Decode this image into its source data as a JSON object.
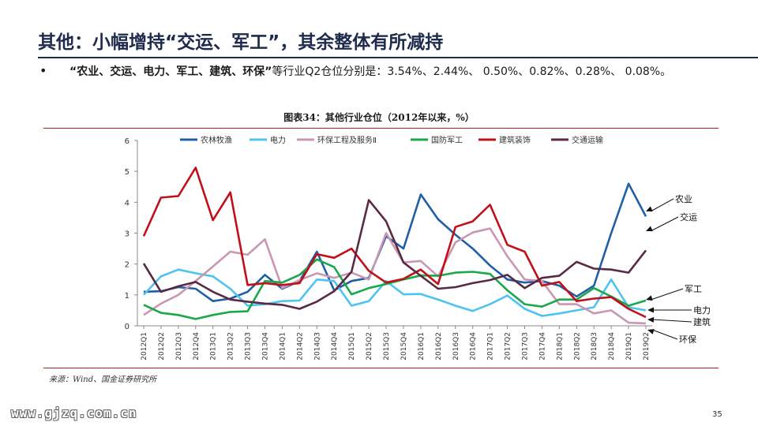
{
  "title": "其他：小幅增持“交运、军工”，其余整体有所减持",
  "bullet": {
    "bold": "“农业、交运、电力、军工、建筑、环保”",
    "rest": "等行业Q2仓位分别是：3.54%、2.44%、 0.50%、0.82%、0.28%、 0.08%。"
  },
  "figure_title": "图表34：其他行业仓位（2012年以来，%）",
  "source": "来源：Wind、国金证券研究所",
  "footer_url": "www.gjzq.com.cn",
  "page_number": "35",
  "chart_data": {
    "type": "line",
    "title": "",
    "xlabel": "",
    "ylabel": "",
    "ylim": [
      0,
      6
    ],
    "yticks": [
      0,
      1,
      2,
      3,
      4,
      5,
      6
    ],
    "grid": false,
    "legend_position": "top",
    "categories": [
      "2012Q1",
      "2012Q2",
      "2012Q3",
      "2012Q4",
      "2013Q1",
      "2013Q2",
      "2013Q3",
      "2013Q4",
      "2014Q1",
      "2014Q2",
      "2014Q3",
      "2014Q4",
      "2015Q1",
      "2015Q2",
      "2015Q3",
      "2015Q4",
      "2016Q1",
      "2016Q2",
      "2016Q3",
      "2016Q4",
      "2017Q1",
      "2017Q2",
      "2017Q3",
      "2017Q4",
      "2018Q1",
      "2018Q2",
      "2018Q3",
      "2018Q4",
      "2019Q1",
      "2019Q2"
    ],
    "series": [
      {
        "name": "农林牧渔",
        "color": "#1f5fa8",
        "values": [
          1.1,
          1.12,
          1.25,
          1.2,
          0.8,
          0.88,
          1.1,
          1.65,
          1.2,
          1.45,
          2.4,
          1.15,
          1.45,
          1.55,
          2.9,
          2.5,
          4.25,
          3.45,
          2.95,
          2.5,
          1.95,
          1.5,
          1.4,
          1.45,
          1.3,
          0.95,
          1.3,
          3.0,
          4.6,
          3.54
        ]
      },
      {
        "name": "电力",
        "color": "#4dc4f0",
        "values": [
          1.0,
          1.6,
          1.82,
          1.7,
          1.6,
          1.2,
          0.65,
          0.7,
          0.8,
          0.82,
          1.5,
          1.45,
          0.65,
          0.8,
          1.45,
          1.02,
          1.03,
          0.85,
          0.65,
          0.48,
          0.7,
          0.98,
          0.55,
          0.32,
          0.4,
          0.5,
          0.6,
          1.5,
          0.6,
          0.5
        ]
      },
      {
        "name": "环保工程及服务Ⅱ",
        "color": "#c997b1",
        "values": [
          0.35,
          0.72,
          1.0,
          1.45,
          1.92,
          2.4,
          2.3,
          2.8,
          1.22,
          1.48,
          1.7,
          1.55,
          1.72,
          1.5,
          3.0,
          2.05,
          2.1,
          1.6,
          2.7,
          3.02,
          3.15,
          2.25,
          1.5,
          1.45,
          0.7,
          0.7,
          0.4,
          0.5,
          0.1,
          0.08
        ]
      },
      {
        "name": "国防军工",
        "color": "#1aa84a",
        "values": [
          0.68,
          0.42,
          0.35,
          0.22,
          0.35,
          0.45,
          0.47,
          1.45,
          1.4,
          1.65,
          2.15,
          1.9,
          1.02,
          1.22,
          1.35,
          1.5,
          1.63,
          1.62,
          1.72,
          1.75,
          1.68,
          1.15,
          0.7,
          0.62,
          0.85,
          0.85,
          1.22,
          0.95,
          0.65,
          0.82
        ]
      },
      {
        "name": "建筑装饰",
        "color": "#c0101a",
        "values": [
          2.9,
          4.15,
          4.2,
          5.12,
          3.42,
          4.32,
          1.32,
          1.38,
          1.32,
          1.38,
          2.32,
          2.2,
          2.5,
          1.78,
          1.4,
          1.52,
          1.82,
          1.35,
          3.2,
          3.38,
          3.92,
          2.62,
          2.4,
          1.3,
          1.42,
          0.8,
          0.88,
          0.93,
          0.55,
          0.28
        ]
      },
      {
        "name": "交通运输",
        "color": "#5a2a44",
        "values": [
          2.02,
          1.1,
          1.28,
          1.42,
          1.1,
          0.85,
          0.78,
          0.72,
          0.68,
          0.55,
          0.78,
          1.12,
          1.75,
          4.07,
          3.38,
          2.05,
          1.62,
          1.2,
          1.25,
          1.38,
          1.48,
          1.65,
          1.22,
          1.55,
          1.62,
          2.07,
          1.85,
          1.82,
          1.72,
          2.44
        ]
      }
    ],
    "annotations": [
      "农业",
      "交运",
      "军工",
      "电力",
      "建筑",
      "环保"
    ]
  }
}
